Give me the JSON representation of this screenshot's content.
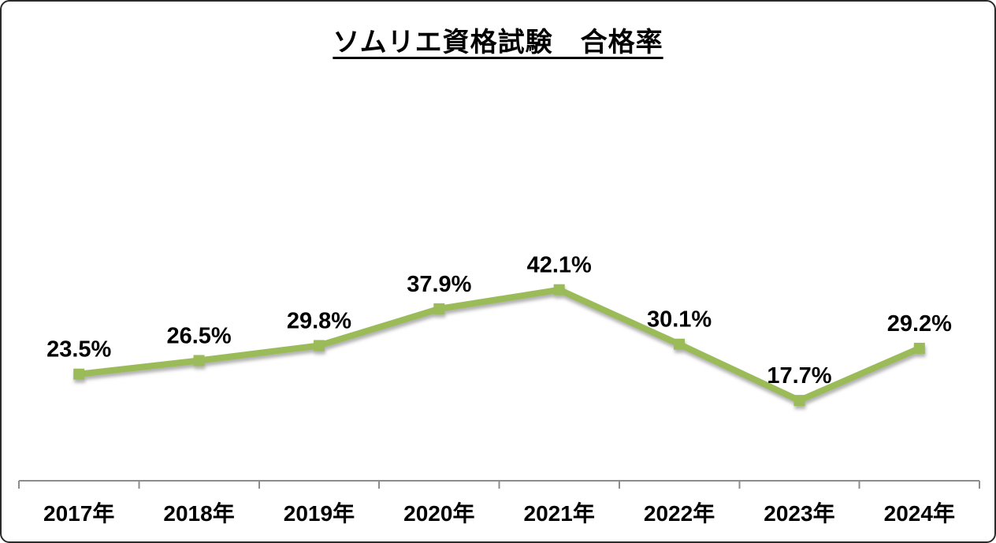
{
  "title": "ソムリエ資格試験　合格率",
  "chart_data": {
    "type": "line",
    "title": "ソムリエ資格試験　合格率",
    "categories": [
      "2017年",
      "2018年",
      "2019年",
      "2020年",
      "2021年",
      "2022年",
      "2023年",
      "2024年"
    ],
    "values": [
      23.5,
      26.5,
      29.8,
      37.9,
      42.1,
      30.1,
      17.7,
      29.2
    ],
    "data_labels": [
      "23.5%",
      "26.5%",
      "29.8%",
      "37.9%",
      "42.1%",
      "30.1%",
      "17.7%",
      "29.2%"
    ],
    "xlabel": "",
    "ylabel": "",
    "ylim": [
      0,
      45
    ],
    "grid": false,
    "legend": false,
    "line_color": "#9BBB59",
    "marker_color": "#9BBB59",
    "marker_shape": "square",
    "axis_color": "#8C8C8C",
    "label_color": "#000000",
    "background_color": "#FFFFFF"
  }
}
